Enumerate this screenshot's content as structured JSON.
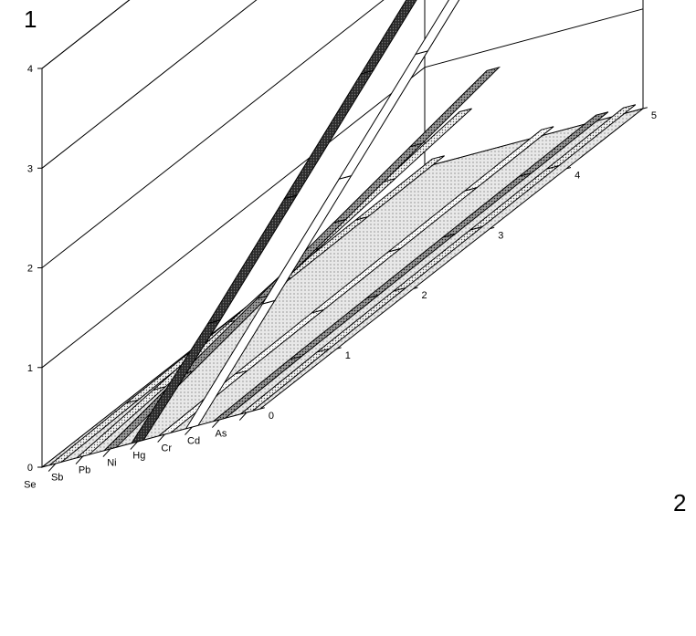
{
  "chart_data": {
    "type": "line",
    "view": "3d-ribbon",
    "corner_labels": {
      "top_left": "1",
      "right": "2"
    },
    "categories": [
      "Se",
      "Sb",
      "Pb",
      "Ni",
      "Hg",
      "Cr",
      "Cd",
      "As"
    ],
    "x": [
      0,
      1,
      2,
      3,
      4,
      5
    ],
    "x_ticks": [
      "0",
      "1",
      "2",
      "3",
      "4",
      "5"
    ],
    "y_ticks": [
      "0",
      "1",
      "2",
      "3",
      "4"
    ],
    "ylim": [
      0,
      4
    ],
    "xlim": [
      0,
      5
    ],
    "grid": true,
    "series": [
      {
        "values": [
          0.0,
          0.02,
          0.03,
          0.04,
          0.05,
          0.06
        ],
        "fill": "dots"
      },
      {
        "values": [
          0.0,
          0.08,
          0.16,
          0.26,
          0.36,
          0.46
        ],
        "fill": "dots"
      },
      {
        "values": [
          0.0,
          0.16,
          0.32,
          0.48,
          0.64,
          0.8
        ],
        "fill": "dots-dark"
      },
      {
        "values": [
          0.0,
          0.6,
          1.25,
          1.9,
          2.55,
          3.2
        ],
        "fill": "dark"
      },
      {
        "values": [
          0.0,
          0.02,
          0.03,
          0.04,
          0.05,
          0.06
        ],
        "fill": "dots-light"
      },
      {
        "values": [
          0.0,
          0.65,
          1.3,
          1.95,
          2.6,
          3.25
        ],
        "fill": "white"
      },
      {
        "values": [
          0.0,
          0.02,
          0.03,
          0.04,
          0.05,
          0.06
        ],
        "fill": "dots-dark"
      },
      {
        "values": [
          0.0,
          0.02,
          0.03,
          0.04,
          0.05,
          0.06
        ],
        "fill": "dots"
      }
    ]
  }
}
